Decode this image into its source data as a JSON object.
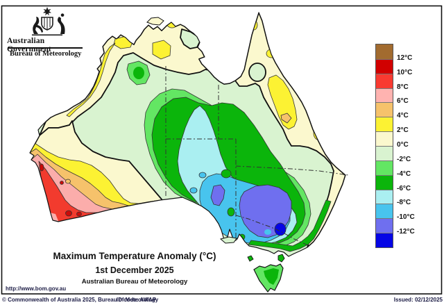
{
  "header": {
    "gov_title": "Australian Government",
    "agency": "Bureau of Meteorology"
  },
  "map": {
    "title": "Maximum Temperature Anomaly (°C)",
    "date": "1st December 2025",
    "source": "Australian Bureau of Meteorology"
  },
  "legend": {
    "unit": "°C",
    "labels": [
      "12°C",
      "10°C",
      "8°C",
      "6°C",
      "4°C",
      "2°C",
      "0°C",
      "-2°C",
      "-4°C",
      "-6°C",
      "-8°C",
      "-10°C",
      "-12°C"
    ],
    "colors": [
      "#A26B2F",
      "#D10000",
      "#F93A31",
      "#FFB3B0",
      "#F6C26B",
      "#FCF233",
      "#FBF8CE",
      "#D9F3D0",
      "#63E663",
      "#0BB50B",
      "#AAEFF1",
      "#48C4EE",
      "#6F6FEF",
      "#0505E5"
    ]
  },
  "colors": {
    "cream": "#FBF8CE",
    "mint": "#D9F3D0",
    "ltgreen": "#63E663",
    "green": "#0BB50B",
    "ltcyan": "#AAEFF1",
    "cyan": "#48C4EE",
    "peri": "#6F6FEF",
    "dkblue": "#0505E5",
    "yellow": "#FCF233",
    "orange": "#F6C26B",
    "pink": "#FBADAB",
    "red": "#F23B2E",
    "dkred": "#CC0A08",
    "brown": "#A26B2F",
    "accent_text": "#1d1d46"
  },
  "footer": {
    "url": "http://www.bom.gov.au",
    "copyright": "© Commonwealth of Australia 2025, Bureau of Meteorology",
    "id_code": "ID code: AWAP",
    "issued": "Issued: 02/12/2025"
  }
}
